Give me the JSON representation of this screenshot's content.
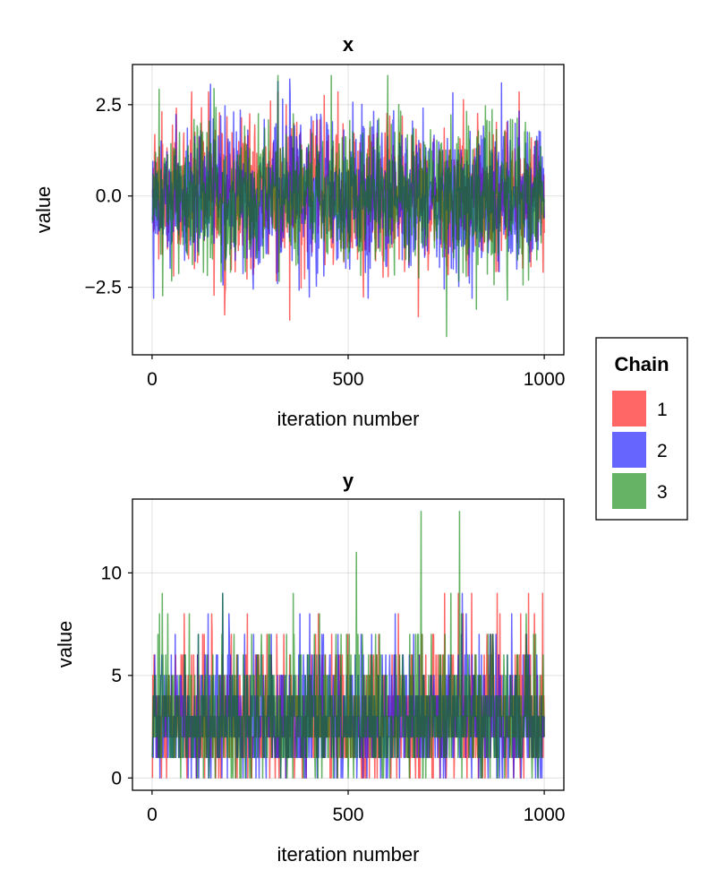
{
  "chart_data": [
    {
      "type": "line",
      "title": "x",
      "xlabel": "iteration number",
      "ylabel": "value",
      "xlim": [
        -50,
        1050
      ],
      "ylim": [
        -4.35,
        3.6
      ],
      "xticks": [
        0,
        500,
        1000
      ],
      "xtick_labels": [
        "0",
        "500",
        "1000"
      ],
      "yticks": [
        -2.5,
        0,
        2.5
      ],
      "ytick_labels": [
        "−2.5",
        "0.0",
        "2.5"
      ],
      "grid": true,
      "iterations": 1000,
      "series": [
        {
          "name": "1",
          "color": "#ff0000",
          "mean": 0.0,
          "sd": 1.0,
          "max": 2.85,
          "min": -3.4
        },
        {
          "name": "2",
          "color": "#0000ff",
          "mean": 0.0,
          "sd": 1.0,
          "max": 3.2,
          "min": -2.8
        },
        {
          "name": "3",
          "color": "#008000",
          "mean": 0.0,
          "sd": 1.0,
          "max": 3.3,
          "min": -3.85
        }
      ]
    },
    {
      "type": "line",
      "title": "y",
      "xlabel": "iteration number",
      "ylabel": "value",
      "xlim": [
        -50,
        1050
      ],
      "ylim": [
        -0.6,
        13.6
      ],
      "xticks": [
        0,
        500,
        1000
      ],
      "xtick_labels": [
        "0",
        "500",
        "1000"
      ],
      "yticks": [
        0,
        5,
        10
      ],
      "ytick_labels": [
        "0",
        "5",
        "10"
      ],
      "grid": true,
      "iterations": 1000,
      "series": [
        {
          "name": "1",
          "color": "#ff0000",
          "mean": 3.0,
          "max": 9,
          "min": 0
        },
        {
          "name": "2",
          "color": "#0000ff",
          "mean": 3.0,
          "max": 9,
          "min": 0
        },
        {
          "name": "3",
          "color": "#008000",
          "mean": 3.0,
          "max": 13,
          "min": 0
        }
      ]
    }
  ],
  "legend": {
    "title": "Chain",
    "placement": "right",
    "items": [
      {
        "label": "1",
        "color": "#ff6666"
      },
      {
        "label": "2",
        "color": "#6666ff"
      },
      {
        "label": "3",
        "color": "#66b366"
      }
    ]
  }
}
